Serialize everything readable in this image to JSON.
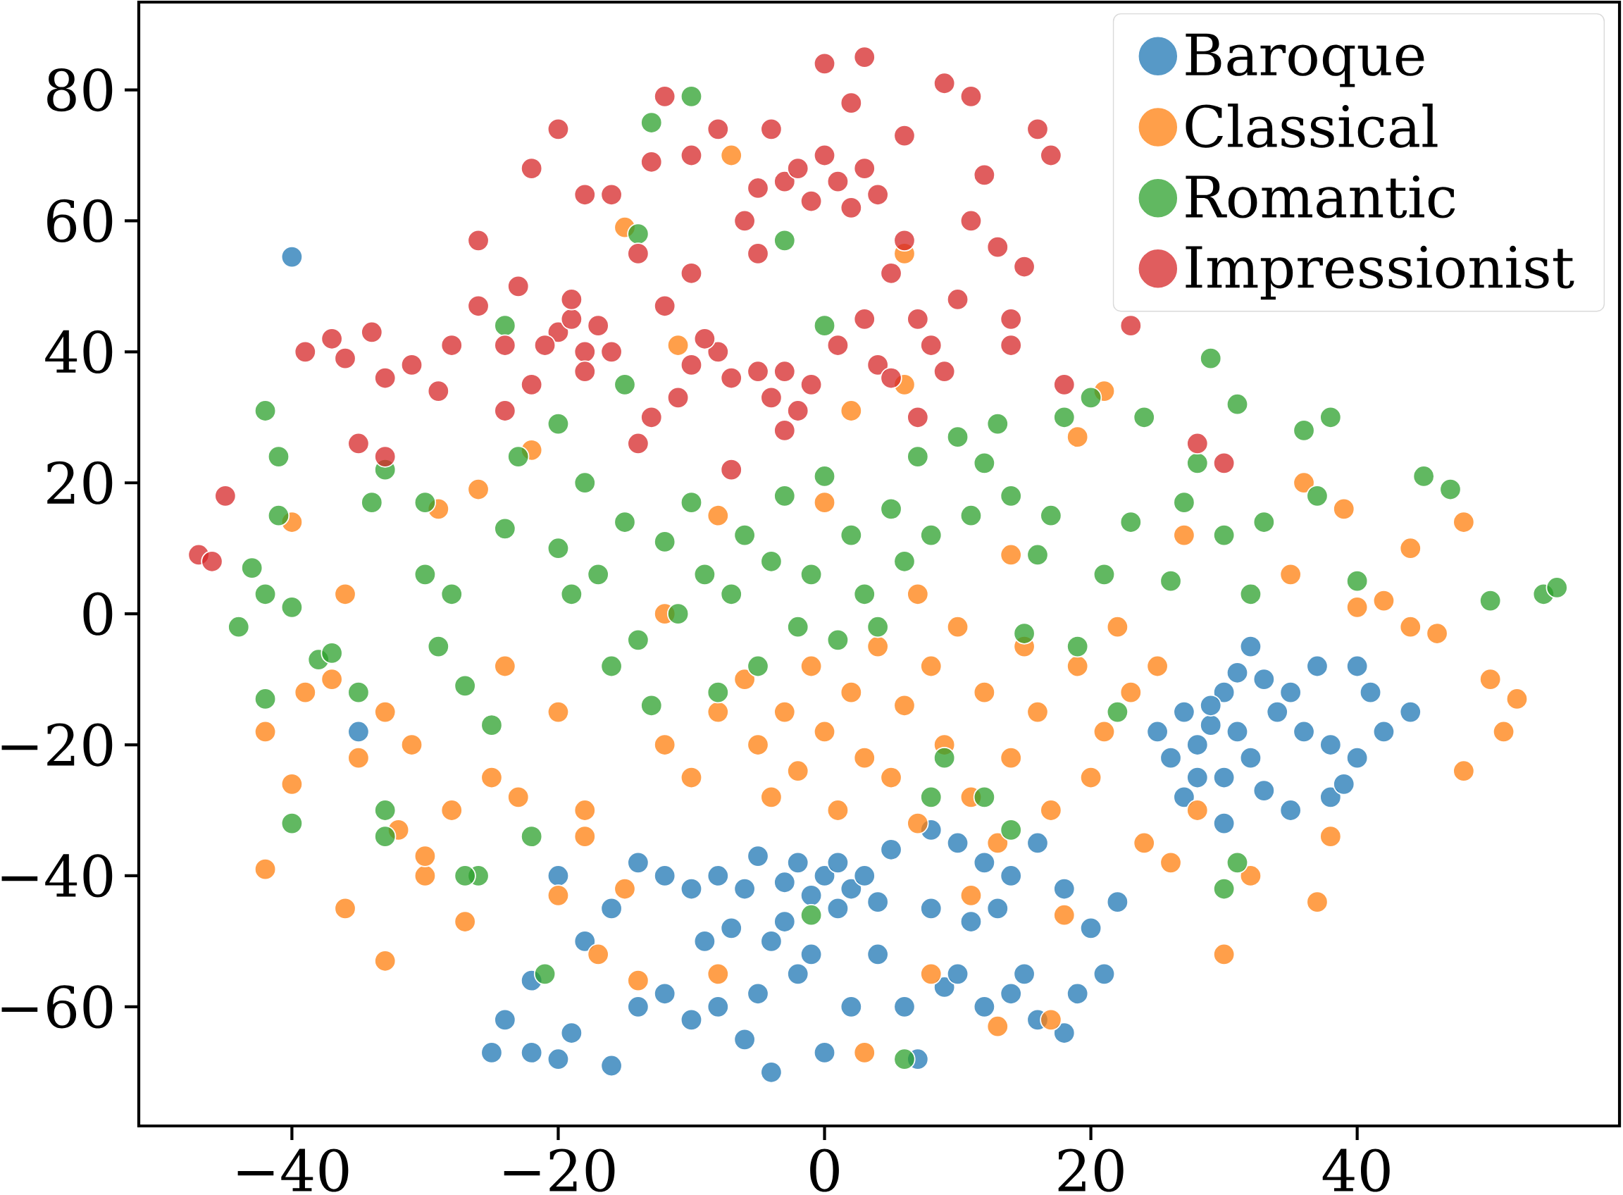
{
  "chart_data": {
    "type": "scatter",
    "xlim": [
      -51.5,
      59.7
    ],
    "ylim": [
      -78.2,
      93.4
    ],
    "xticks": [
      {
        "value": -40,
        "label": "−40"
      },
      {
        "value": -20,
        "label": "−20"
      },
      0,
      20,
      40
    ],
    "yticks": [
      {
        "value": -60,
        "label": "−60"
      },
      {
        "value": -40,
        "label": "−40"
      },
      {
        "value": -20,
        "label": "−20"
      },
      0,
      20,
      40,
      60,
      80
    ],
    "grid": false,
    "legend": "top right",
    "marker": "circle",
    "series": [
      {
        "name": "Baroque",
        "color": "#1f77b4",
        "x": [
          -40,
          -35,
          25,
          27,
          28,
          29,
          30,
          31,
          32,
          33,
          34,
          35,
          30,
          28,
          26,
          36,
          38,
          40,
          41,
          42,
          40,
          37,
          32,
          35,
          38,
          30,
          27,
          44,
          39,
          33,
          31,
          29,
          0,
          1,
          2,
          -1,
          3,
          -2,
          4,
          1,
          -3,
          5,
          -5,
          -6,
          8,
          10,
          12,
          14,
          16,
          18,
          20,
          21,
          22,
          19,
          -12,
          -14,
          -10,
          -16,
          -20,
          -18,
          -22,
          -24,
          -22,
          -19,
          -16,
          -14,
          -12,
          -10,
          -8,
          -6,
          -4,
          -5,
          -2,
          0,
          2,
          4,
          6,
          9,
          12,
          14,
          16,
          18,
          7,
          -9,
          -7,
          -4,
          -1,
          11,
          13,
          8,
          10,
          15,
          -25,
          -20,
          -3,
          -8
        ],
        "values": [
          54.5,
          -18,
          -18,
          -15,
          -20,
          -17,
          -12,
          -18,
          -22,
          -10,
          -15,
          -12,
          -25,
          -25,
          -22,
          -18,
          -20,
          -8,
          -12,
          -18,
          -22,
          -8,
          -5,
          -30,
          -28,
          -32,
          -28,
          -15,
          -26,
          -27,
          -9,
          -14,
          -40,
          -38,
          -42,
          -43,
          -40,
          -38,
          -44,
          -45,
          -41,
          -36,
          -37,
          -42,
          -33,
          -35,
          -38,
          -40,
          -35,
          -42,
          -48,
          -55,
          -44,
          -58,
          -40,
          -38,
          -42,
          -45,
          -40,
          -50,
          -56,
          -62,
          -67,
          -64,
          -69,
          -60,
          -58,
          -62,
          -60,
          -65,
          -70,
          -58,
          -55,
          -67,
          -60,
          -52,
          -60,
          -57,
          -60,
          -58,
          -62,
          -64,
          -68,
          -50,
          -48,
          -50,
          -52,
          -47,
          -45,
          -45,
          -55,
          -55,
          -67,
          -68,
          -47,
          -40
        ]
      },
      {
        "name": "Classical",
        "color": "#ff7f0e",
        "x": [
          -37,
          -39,
          -35,
          -40,
          -42,
          -42,
          -36,
          -33,
          -30,
          -28,
          -27,
          -25,
          -31,
          -33,
          -32,
          -24,
          -23,
          -20,
          -18,
          -17,
          -15,
          -14,
          -12,
          -10,
          -8,
          -6,
          -5,
          -4,
          -3,
          -2,
          -1,
          0,
          1,
          2,
          3,
          4,
          5,
          6,
          7,
          8,
          9,
          10,
          11,
          12,
          13,
          14,
          15,
          16,
          17,
          18,
          19,
          20,
          21,
          22,
          23,
          24,
          25,
          26,
          27,
          28,
          30,
          32,
          35,
          36,
          38,
          39,
          40,
          42,
          44,
          46,
          48,
          48,
          50,
          51,
          52,
          44,
          6,
          -15,
          -7,
          2,
          -22,
          -40,
          -36,
          -29,
          -8,
          0,
          11,
          13,
          8,
          3,
          -8,
          -18,
          -20,
          17,
          37,
          6,
          -11,
          21,
          19,
          -26,
          -12,
          7,
          14,
          -30
        ],
        "values": [
          -10,
          -12,
          -22,
          -26,
          -18,
          -39,
          -45,
          -53,
          -40,
          -30,
          -47,
          -25,
          -20,
          -15,
          -33,
          -8,
          -28,
          -15,
          -30,
          -52,
          -42,
          -56,
          -20,
          -25,
          -15,
          -10,
          -20,
          -28,
          -15,
          -24,
          -8,
          -18,
          -30,
          -12,
          -22,
          -5,
          -25,
          -14,
          -32,
          -8,
          -20,
          -2,
          -28,
          -12,
          -35,
          -22,
          -5,
          -15,
          -30,
          -46,
          -8,
          -25,
          -18,
          -2,
          -12,
          -35,
          -8,
          -38,
          12,
          -30,
          -52,
          -40,
          6,
          20,
          -34,
          16,
          1,
          2,
          -2,
          -3,
          14,
          -24,
          -10,
          -18,
          -13,
          10,
          55,
          59,
          70,
          31,
          25,
          14,
          3,
          16,
          15,
          17,
          -43,
          -63,
          -55,
          -67,
          -55,
          -34,
          -43,
          -62,
          -44,
          35,
          41,
          34,
          27,
          19,
          0,
          3,
          9,
          -37
        ]
      },
      {
        "name": "Romantic",
        "color": "#2ca02c",
        "x": [
          -44,
          -42,
          -40,
          -43,
          -42,
          -41,
          -41,
          -40,
          -42,
          -38,
          -35,
          -33,
          -33,
          -34,
          -33,
          -30,
          -30,
          -29,
          -28,
          -27,
          -26,
          -25,
          -24,
          -23,
          -22,
          -21,
          -20,
          -20,
          -19,
          -18,
          -17,
          -16,
          -15,
          -14,
          -13,
          -12,
          -11,
          -10,
          -9,
          -8,
          -7,
          -6,
          -5,
          -4,
          -3,
          -2,
          -1,
          0,
          1,
          2,
          3,
          4,
          5,
          6,
          7,
          8,
          9,
          10,
          11,
          12,
          13,
          14,
          15,
          16,
          17,
          18,
          19,
          20,
          21,
          22,
          23,
          24,
          26,
          27,
          28,
          29,
          30,
          31,
          33,
          36,
          37,
          38,
          40,
          45,
          47,
          50,
          54,
          55,
          -13,
          -10,
          -14,
          -3,
          -24,
          12,
          14,
          30,
          31,
          -37,
          6,
          -27,
          -1,
          0,
          -15,
          8,
          32
        ],
        "values": [
          -2,
          3,
          1,
          7,
          31,
          24,
          15,
          -32,
          -13,
          -7,
          -12,
          -30,
          -34,
          17,
          22,
          17,
          6,
          -5,
          3,
          -11,
          -40,
          -17,
          13,
          24,
          -34,
          -55,
          10,
          29,
          3,
          20,
          6,
          -8,
          14,
          -4,
          -14,
          11,
          0,
          17,
          6,
          -12,
          3,
          12,
          -8,
          8,
          18,
          -2,
          6,
          21,
          -4,
          12,
          3,
          -2,
          16,
          8,
          24,
          12,
          -22,
          27,
          15,
          23,
          29,
          18,
          -3,
          9,
          15,
          30,
          -5,
          33,
          6,
          -15,
          14,
          30,
          5,
          17,
          23,
          39,
          12,
          32,
          14,
          28,
          18,
          30,
          5,
          21,
          19,
          2,
          3,
          4,
          75,
          79,
          58,
          57,
          44,
          -28,
          -33,
          -42,
          -38,
          -6,
          -68,
          -40,
          -46,
          44,
          35,
          -28,
          3
        ]
      },
      {
        "name": "Impressionist",
        "color": "#d62728",
        "x": [
          -47,
          -46,
          -45,
          -37,
          -36,
          -34,
          -33,
          -31,
          -29,
          -35,
          -33,
          -28,
          -26,
          -24,
          -23,
          -22,
          -20,
          -19,
          -18,
          -17,
          -16,
          -21,
          -19,
          -18,
          -20,
          -22,
          -18,
          -16,
          -14,
          -13,
          -12,
          -10,
          -8,
          -12,
          -10,
          -8,
          -10,
          -13,
          -14,
          -11,
          -9,
          -7,
          -6,
          -5,
          -4,
          -3,
          -2,
          -1,
          0,
          1,
          2,
          3,
          4,
          0,
          2,
          3,
          -5,
          -4,
          -3,
          -2,
          -1,
          -3,
          1,
          3,
          5,
          6,
          7,
          8,
          9,
          10,
          11,
          12,
          13,
          14,
          15,
          16,
          17,
          9,
          11,
          6,
          4,
          5,
          7,
          -7,
          -5,
          -26,
          23,
          28,
          30,
          -39,
          -24,
          18,
          14
        ],
        "values": [
          9,
          8,
          18,
          42,
          39,
          43,
          36,
          38,
          34,
          26,
          24,
          41,
          47,
          41,
          50,
          35,
          43,
          45,
          40,
          44,
          40,
          41,
          48,
          37,
          74,
          68,
          64,
          64,
          55,
          69,
          79,
          70,
          74,
          47,
          52,
          40,
          38,
          30,
          26,
          33,
          42,
          36,
          60,
          65,
          74,
          66,
          68,
          63,
          70,
          66,
          62,
          68,
          64,
          84,
          78,
          85,
          37,
          33,
          37,
          31,
          35,
          28,
          41,
          45,
          52,
          57,
          45,
          41,
          37,
          48,
          60,
          67,
          56,
          45,
          53,
          74,
          70,
          81,
          79,
          73,
          38,
          36,
          30,
          22,
          55,
          57,
          44,
          26,
          23,
          40,
          31,
          35,
          41
        ]
      }
    ]
  }
}
